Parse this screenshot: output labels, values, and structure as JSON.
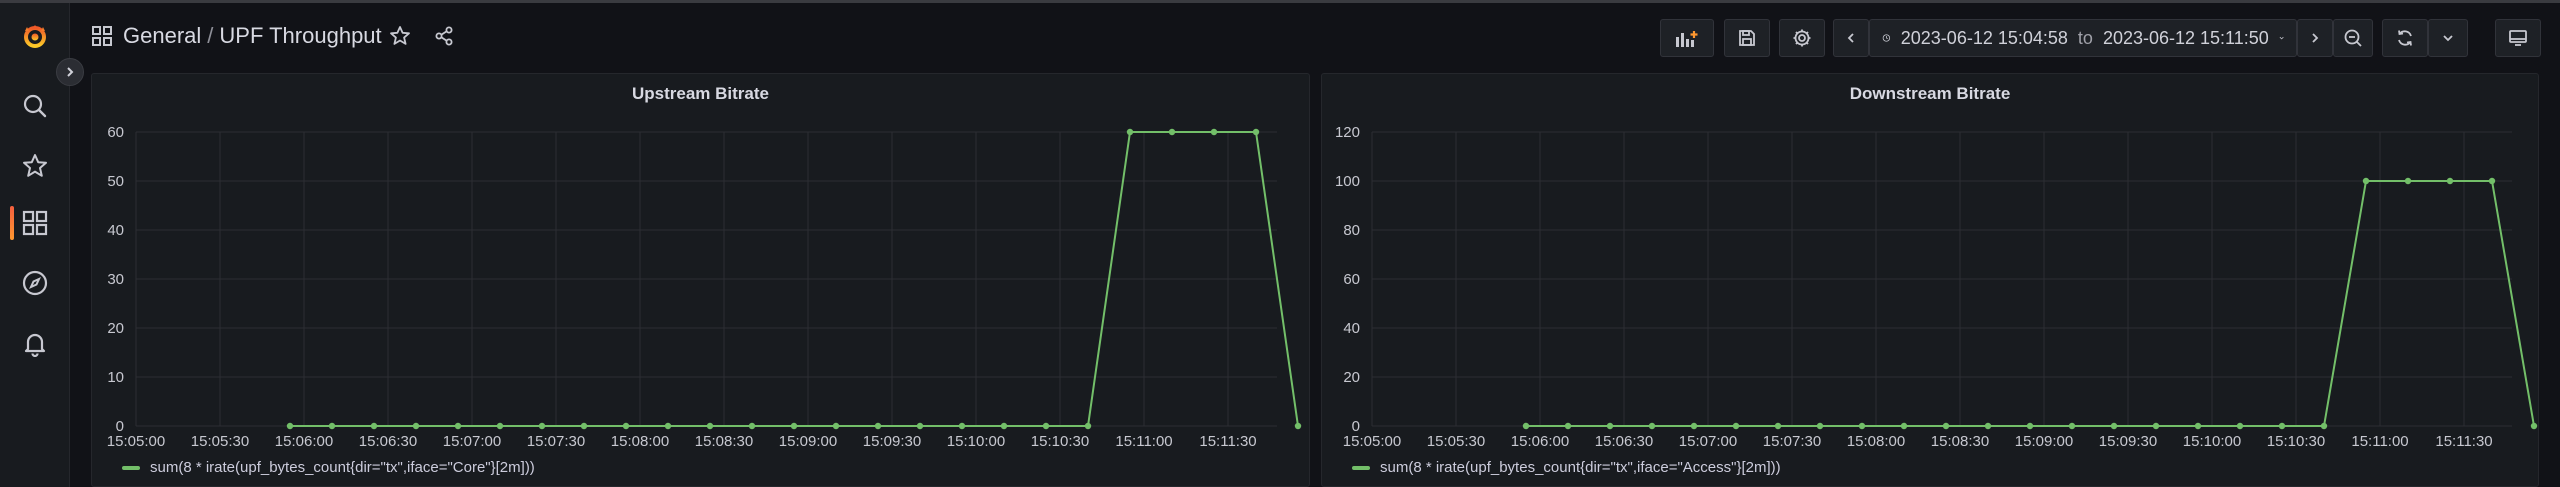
{
  "breadcrumb": {
    "folder": "General",
    "separator": "/",
    "dashboard": "UPF Throughput"
  },
  "time_picker": {
    "from": "2023-06-12 15:04:58",
    "to_word": "to",
    "to": "2023-06-12 15:11:50"
  },
  "colors": {
    "series": "#73bf69",
    "accent": "#f55f3e",
    "grid": "#2c2e33",
    "background": "#111217",
    "panel": "#181b1f"
  },
  "icons": {
    "sidebar": [
      "grafana-logo-icon",
      "search-icon",
      "star-icon",
      "dashboards-icon",
      "explore-icon",
      "bell-icon"
    ],
    "toolbar": [
      "add-panel-icon",
      "save-icon",
      "gear-icon",
      "chevron-left-icon",
      "clock-icon",
      "chevron-down-icon",
      "chevron-right-icon",
      "zoom-out-icon",
      "refresh-icon",
      "chevron-down-icon",
      "tv-icon"
    ]
  },
  "panels": [
    {
      "title": "Upstream Bitrate",
      "legend": "sum(8 * irate(upf_bytes_count{dir=\"tx\",iface=\"Core\"}[2m]))",
      "chart_data": {
        "type": "line",
        "x_ticks": [
          "15:05:00",
          "15:05:30",
          "15:06:00",
          "15:06:30",
          "15:07:00",
          "15:07:30",
          "15:08:00",
          "15:08:30",
          "15:09:00",
          "15:09:30",
          "15:10:00",
          "15:10:30",
          "15:11:00",
          "15:11:30"
        ],
        "y_ticks": [
          0,
          10,
          20,
          30,
          40,
          50,
          60
        ],
        "ylim": [
          0,
          60
        ],
        "x_start": "15:05:00",
        "x_step_seconds": 15,
        "x_first_point": "15:05:55",
        "values": [
          0,
          0,
          0,
          0,
          0,
          0,
          0,
          0,
          0,
          0,
          0,
          0,
          0,
          0,
          0,
          0,
          0,
          0,
          0,
          0,
          60,
          60,
          60,
          60,
          0
        ],
        "grid": true,
        "legend_position": "bottom-left"
      }
    },
    {
      "title": "Downstream Bitrate",
      "legend": "sum(8 * irate(upf_bytes_count{dir=\"tx\",iface=\"Access\"}[2m]))",
      "chart_data": {
        "type": "line",
        "x_ticks": [
          "15:05:00",
          "15:05:30",
          "15:06:00",
          "15:06:30",
          "15:07:00",
          "15:07:30",
          "15:08:00",
          "15:08:30",
          "15:09:00",
          "15:09:30",
          "15:10:00",
          "15:10:30",
          "15:11:00",
          "15:11:30"
        ],
        "y_ticks": [
          0,
          20,
          40,
          60,
          80,
          100,
          120
        ],
        "ylim": [
          0,
          120
        ],
        "x_start": "15:05:00",
        "x_step_seconds": 15,
        "x_first_point": "15:05:55",
        "values": [
          0,
          0,
          0,
          0,
          0,
          0,
          0,
          0,
          0,
          0,
          0,
          0,
          0,
          0,
          0,
          0,
          0,
          0,
          0,
          0,
          100,
          100,
          100,
          100,
          0
        ],
        "grid": true,
        "legend_position": "bottom-left"
      }
    }
  ]
}
